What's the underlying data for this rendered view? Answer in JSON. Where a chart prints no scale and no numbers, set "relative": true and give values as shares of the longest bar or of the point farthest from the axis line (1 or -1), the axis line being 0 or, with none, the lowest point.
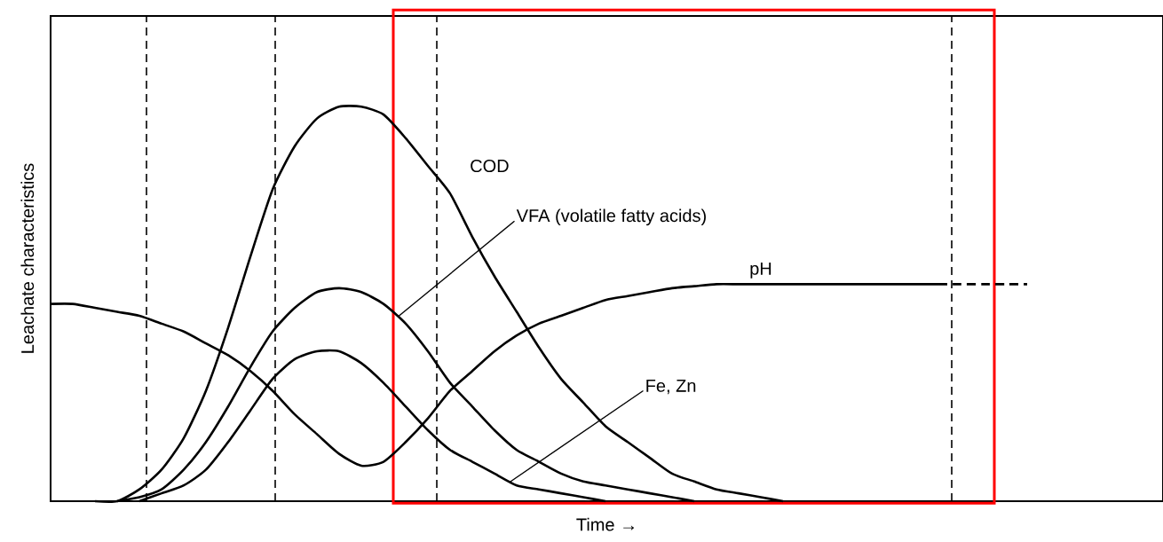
{
  "chart_data": {
    "type": "line",
    "relative": true,
    "xlabel": "Time →",
    "ylabel": "Leachate characteristics",
    "categories": [
      null,
      null,
      null,
      null,
      null,
      null,
      null,
      null,
      null,
      null,
      null,
      null,
      null,
      null,
      null,
      null,
      null,
      null,
      null,
      null,
      null,
      null,
      null,
      null,
      null,
      null,
      null,
      null,
      null,
      null,
      null,
      null,
      null,
      null,
      null,
      null,
      null,
      null,
      null,
      null,
      null,
      null,
      null,
      null,
      null,
      null,
      null,
      null,
      null,
      null,
      null
    ],
    "series": [
      {
        "name": "COD",
        "color": "#000000",
        "line_style": "solid",
        "values": [
          null,
          null,
          0,
          0,
          0.03,
          0.08,
          0.16,
          0.28,
          0.44,
          0.62,
          0.79,
          0.9,
          0.97,
          1.0,
          1.0,
          0.98,
          0.92,
          0.85,
          0.78,
          0.67,
          0.57,
          0.48,
          0.39,
          0.31,
          0.25,
          0.19,
          0.15,
          0.11,
          0.07,
          0.05,
          0.03,
          0.02,
          0.01,
          0,
          null,
          null,
          null,
          null,
          null,
          null,
          null,
          null,
          null,
          null,
          null,
          null,
          null,
          null,
          null,
          null,
          null
        ]
      },
      {
        "name": "VFA (volatile fatty acids)",
        "color": "#000000",
        "line_style": "solid",
        "values": [
          null,
          null,
          null,
          0,
          0.01,
          0.03,
          0.08,
          0.15,
          0.24,
          0.34,
          0.43,
          0.49,
          0.53,
          0.54,
          0.53,
          0.5,
          0.45,
          0.38,
          0.3,
          0.24,
          0.18,
          0.13,
          0.1,
          0.07,
          0.05,
          0.04,
          0.03,
          0.02,
          0.01,
          0,
          null,
          null,
          null,
          null,
          null,
          null,
          null,
          null,
          null,
          null,
          null,
          null,
          null,
          null,
          null,
          null,
          null,
          null,
          null,
          null,
          null
        ]
      },
      {
        "name": "Fe, Zn",
        "color": "#000000",
        "line_style": "solid",
        "values": [
          null,
          null,
          null,
          null,
          0,
          0.02,
          0.04,
          0.08,
          0.15,
          0.23,
          0.31,
          0.36,
          0.38,
          0.38,
          0.35,
          0.3,
          0.24,
          0.18,
          0.13,
          0.1,
          0.07,
          0.04,
          0.03,
          0.02,
          0.01,
          0,
          null,
          null,
          null,
          null,
          null,
          null,
          null,
          null,
          null,
          null,
          null,
          null,
          null,
          null,
          null,
          null,
          null,
          null,
          null,
          null,
          null,
          null,
          null,
          null,
          null
        ]
      },
      {
        "name": "pH",
        "color": "#000000",
        "line_style": "solid",
        "values": [
          0.5,
          0.5,
          0.49,
          0.48,
          0.47,
          0.45,
          0.43,
          0.4,
          0.37,
          0.33,
          0.28,
          0.22,
          0.17,
          0.12,
          0.09,
          0.1,
          0.15,
          0.21,
          0.28,
          0.33,
          0.38,
          0.42,
          0.45,
          0.47,
          0.49,
          0.51,
          0.52,
          0.53,
          0.54,
          0.545,
          0.55,
          0.55,
          0.55,
          0.55,
          0.55,
          0.55,
          0.55,
          0.55,
          0.55,
          0.55,
          0.55,
          null,
          null,
          null,
          null,
          null,
          null,
          null,
          null,
          null,
          null
        ]
      },
      {
        "color": "#000000",
        "line_style": "dashed",
        "values": [
          null,
          null,
          null,
          null,
          null,
          null,
          null,
          null,
          null,
          null,
          null,
          null,
          null,
          null,
          null,
          null,
          null,
          null,
          null,
          null,
          null,
          null,
          null,
          null,
          null,
          null,
          null,
          null,
          null,
          null,
          null,
          null,
          null,
          null,
          null,
          null,
          null,
          null,
          null,
          null,
          0.55,
          0.55,
          0.55,
          0.55,
          0.55,
          null,
          null,
          null,
          null,
          null,
          null
        ]
      }
    ],
    "legend": false,
    "marker": "none"
  }
}
